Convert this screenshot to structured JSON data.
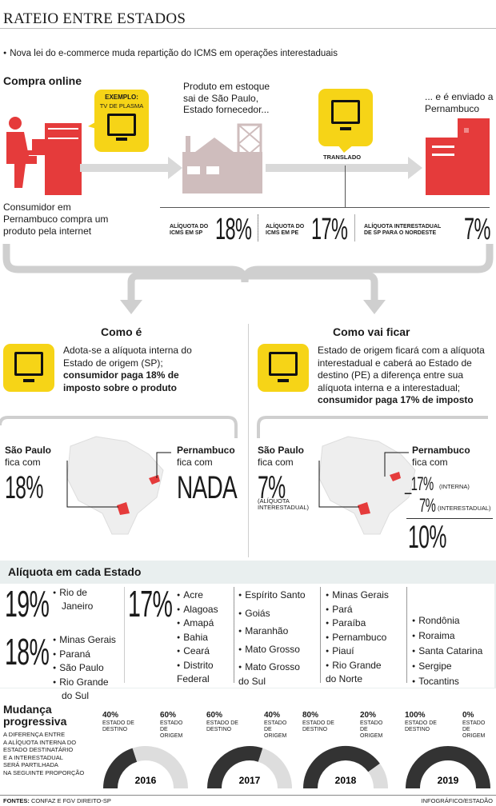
{
  "header": {
    "title": "RATEIO ENTRE ESTADOS",
    "subtitle": "Nova lei do e-commerce muda repartição do ICMS em operações interestaduais"
  },
  "flow": {
    "section_label": "Compra online",
    "example_label": "EXEMPLO:",
    "example_item": "TV DE PLASMA",
    "consumer_text": [
      "Consumidor em",
      "Pernambuco compra um",
      "produto pela internet"
    ],
    "stock_text": [
      "Produto em estoque",
      "sai de São Paulo,",
      "Estado fornecedor..."
    ],
    "translado_label": "TRANSLADO",
    "sent_text": [
      "... e é enviado a",
      "Pernambuco"
    ],
    "rates": [
      {
        "label": [
          "ALÍQUOTA DO",
          "ICMS EM SP"
        ],
        "value": "18",
        "unit": "%"
      },
      {
        "label": [
          "ALÍQUOTA DO",
          "ICMS EM PE"
        ],
        "value": "17",
        "unit": "%"
      },
      {
        "label": [
          "ALÍQUOTA INTERESTADUAL",
          "DE SP PARA O NORDESTE"
        ],
        "value": "7",
        "unit": "%"
      }
    ]
  },
  "como_e": {
    "heading": "Como é",
    "text_plain": [
      "Adota-se a alíquota interna do",
      "Estado de origem (SP);"
    ],
    "text_bold": [
      "consumidor paga 18% de",
      "imposto sobre o produto"
    ],
    "sp_label": [
      "São Paulo",
      "fica com"
    ],
    "sp_value": "18",
    "sp_unit": "%",
    "pe_label": [
      "Pernambuco",
      "fica com"
    ],
    "pe_value": "NADA"
  },
  "como_vai_ficar": {
    "heading": "Como vai ficar",
    "text_plain": [
      "Estado de origem ficará com a alíquota",
      "interestadual e caberá ao Estado de",
      "destino (PE) a diferença entre sua",
      "alíquota interna e a interestadual;"
    ],
    "text_bold": "consumidor paga 17% de imposto",
    "sp_label": [
      "São Paulo",
      "fica com"
    ],
    "sp_value": "7",
    "sp_unit": "%",
    "sp_note": [
      "(ALÍQUOTA",
      "INTERESTADUAL)"
    ],
    "pe_label": [
      "Pernambuco",
      "fica com"
    ],
    "pe_line1_value": "_17",
    "pe_line1_unit": "%",
    "pe_line1_note": "(INTERNA)",
    "pe_line2_value": "7",
    "pe_line2_unit": "%",
    "pe_line2_note": "(INTERESTADUAL)",
    "pe_result": "10",
    "pe_result_unit": "%"
  },
  "aliquotas": {
    "heading": "Alíquota em cada Estado",
    "rate19": "19",
    "rate19_states": [
      "Rio de",
      "Janeiro"
    ],
    "rate18": "18",
    "rate18_states": [
      "Minas Gerais",
      "Paraná",
      "São Paulo",
      "Rio Grande",
      "do Sul"
    ],
    "rate17": "17",
    "col1": [
      "Acre",
      "Alagoas",
      "Amapá",
      "Bahia",
      "Ceará",
      "Distrito",
      "Federal"
    ],
    "col2": [
      "Espírito Santo",
      "Goiás",
      "Maranhão",
      "Mato Grosso",
      "Mato Grosso",
      "do Sul"
    ],
    "col3": [
      "Minas Gerais",
      "Pará",
      "Paraíba",
      "Pernambuco",
      "Piauí",
      "Rio Grande",
      "do Norte"
    ],
    "col4": [
      "Rondônia",
      "Roraima",
      "Santa Catarina",
      "Sergipe",
      "Tocantins"
    ],
    "percent": "%"
  },
  "mudanca": {
    "heading": [
      "Mudança",
      "progressiva"
    ],
    "description": [
      "A DIFERENÇA ENTRE",
      "A ALÍQUOTA INTERNA DO",
      "ESTADO DESTINATÁRIO",
      "E A INTERESTADUAL",
      "SERÁ PARTILHADA",
      "NA SEGUINTE PROPORÇÃO"
    ],
    "destino_label": [
      "ESTADO DE",
      "DESTINO"
    ],
    "origem_label": [
      "ESTADO",
      "DE ORIGEM"
    ],
    "years": [
      {
        "year": "2016",
        "destino": "40%",
        "origem": "60%",
        "destino_fraction": 0.4
      },
      {
        "year": "2017",
        "destino": "60%",
        "origem": "40%",
        "destino_fraction": 0.6
      },
      {
        "year": "2018",
        "destino": "80%",
        "origem": "20%",
        "destino_fraction": 0.8
      },
      {
        "year": "2019",
        "destino": "100%",
        "origem": "0%",
        "destino_fraction": 1.0
      }
    ],
    "colors": {
      "destino": "#333333",
      "origem": "#dddddd"
    }
  },
  "footer": {
    "sources_label": "FONTES:",
    "sources": "CONFAZ E FGV DIREITO-SP",
    "credit": "INFOGRÁFICO/ESTADÃO"
  },
  "colors": {
    "accent": "#e53b3b",
    "yellow": "#f6d417",
    "panel": "#e9efef",
    "grey": "#cfcfcf"
  }
}
